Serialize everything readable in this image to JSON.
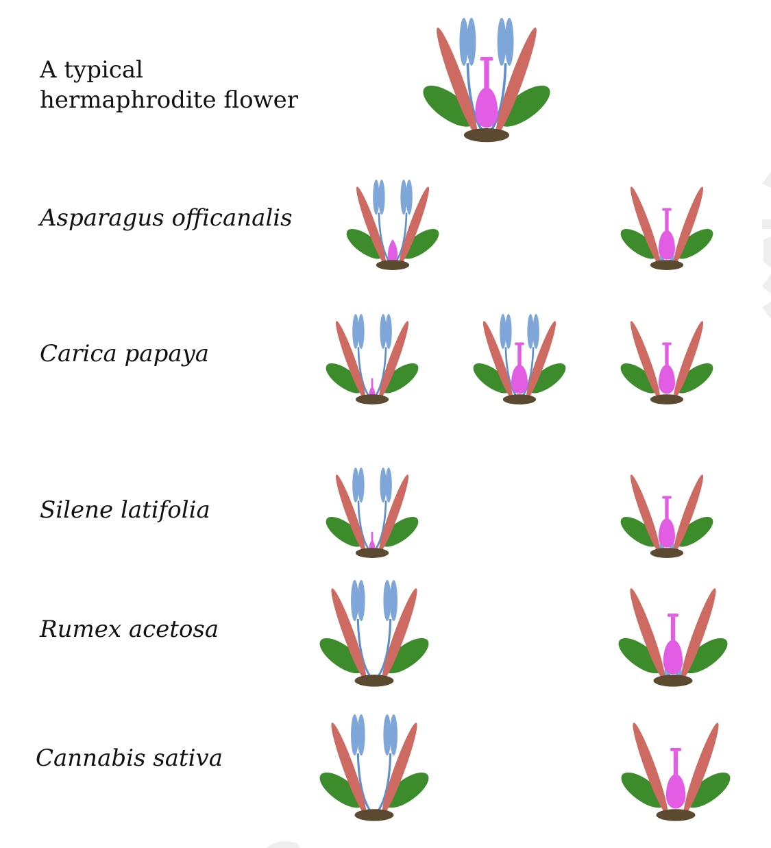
{
  "colors": {
    "sepal": "#3c8c2c",
    "petal": "#cd6a62",
    "stamen": "#7ea6d8",
    "filament": "#5f8fcc",
    "pistil": "#e25ce4",
    "receptacle": "#5c4a30",
    "text": "#111111",
    "watermark": "#eeeeee"
  },
  "rows": [
    {
      "label_lines": [
        "A typical",
        "hermaphrodite flower"
      ],
      "italic": false,
      "flowers": [
        {
          "id": "hermaphrodite",
          "stamens": "full",
          "pistil": "full"
        }
      ]
    },
    {
      "label": "Asparagus officanalis",
      "italic": true,
      "flowers": [
        {
          "id": "male",
          "stamens": "full",
          "pistil": "small"
        },
        {
          "id": "female",
          "stamens": "vestigial",
          "pistil": "full"
        }
      ]
    },
    {
      "label": "Carica papaya",
      "italic": true,
      "flowers": [
        {
          "id": "male",
          "stamens": "full",
          "pistil": "tiny"
        },
        {
          "id": "hermaphrodite",
          "stamens": "full",
          "pistil": "full"
        },
        {
          "id": "female",
          "stamens": "none",
          "pistil": "full"
        }
      ]
    },
    {
      "label": "Silene latifolia",
      "italic": true,
      "flowers": [
        {
          "id": "male",
          "stamens": "full",
          "pistil": "tiny"
        },
        {
          "id": "female",
          "stamens": "vestigial",
          "pistil": "full"
        }
      ]
    },
    {
      "label": "Rumex acetosa",
      "italic": true,
      "flowers": [
        {
          "id": "male",
          "stamens": "full",
          "pistil": "none"
        },
        {
          "id": "female",
          "stamens": "vestigial",
          "pistil": "full"
        }
      ]
    },
    {
      "label": "Cannabis sativa",
      "italic": true,
      "flowers": [
        {
          "id": "male",
          "stamens": "full",
          "pistil": "none"
        },
        {
          "id": "female",
          "stamens": "none",
          "pistil": "full"
        }
      ]
    }
  ]
}
